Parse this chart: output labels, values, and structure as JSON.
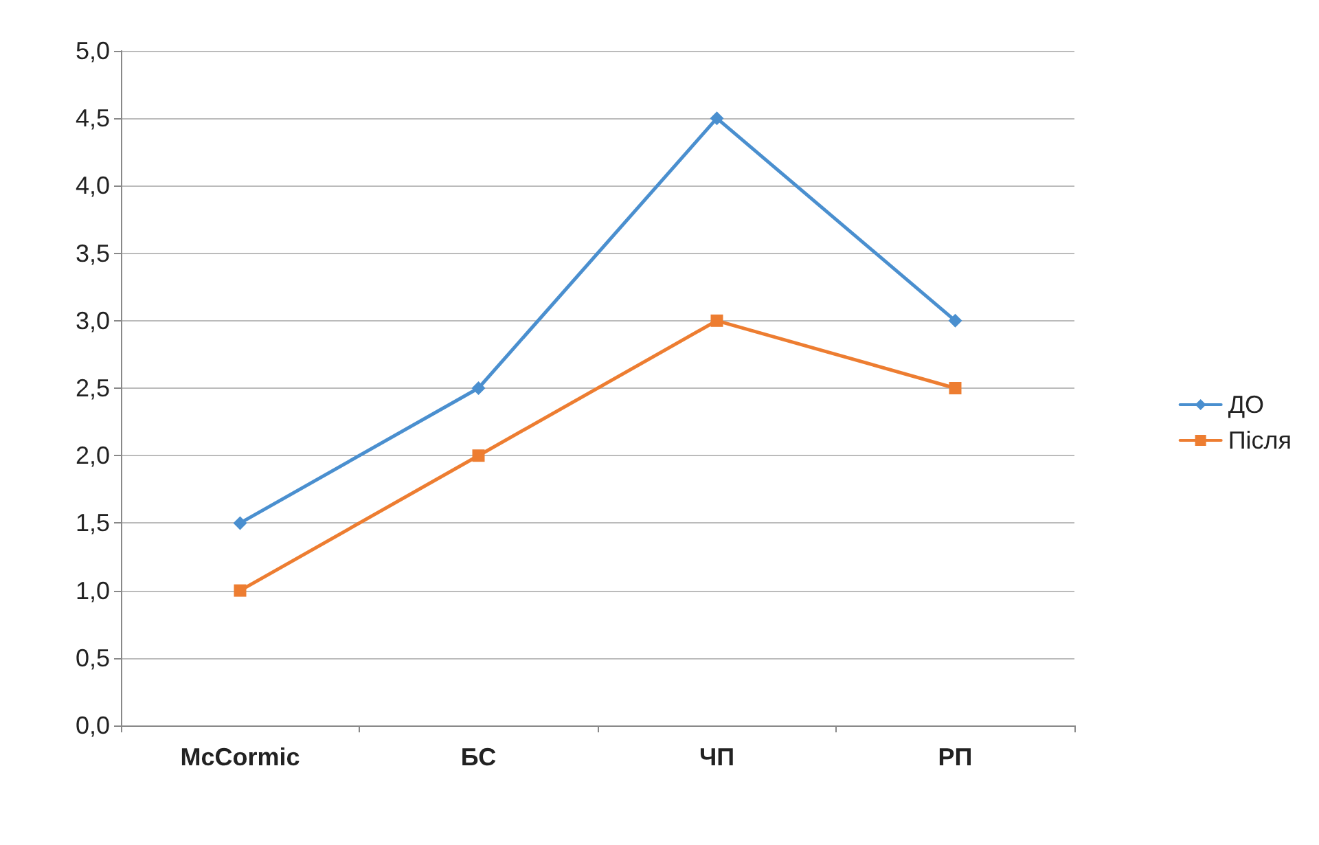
{
  "chart_data": {
    "type": "line",
    "categories": [
      "McCormic",
      "БС",
      "ЧП",
      "РП"
    ],
    "series": [
      {
        "name": "ДО",
        "color": "#4a8fcf",
        "marker": "diamond",
        "values": [
          1.5,
          2.5,
          4.5,
          3.0
        ]
      },
      {
        "name": "Після",
        "color": "#ed7d31",
        "marker": "square",
        "values": [
          1.0,
          2.0,
          3.0,
          2.5
        ]
      }
    ],
    "ylim": [
      0,
      5
    ],
    "yticks": [
      {
        "value": 0,
        "label": "0,0"
      },
      {
        "value": 0.5,
        "label": "0,5"
      },
      {
        "value": 1,
        "label": "1,0"
      },
      {
        "value": 1.5,
        "label": "1,5"
      },
      {
        "value": 2,
        "label": "2,0"
      },
      {
        "value": 2.5,
        "label": "2,5"
      },
      {
        "value": 3,
        "label": "3,0"
      },
      {
        "value": 3.5,
        "label": "3,5"
      },
      {
        "value": 4,
        "label": "4,0"
      },
      {
        "value": 4.5,
        "label": "4,5"
      },
      {
        "value": 5,
        "label": "5,0"
      }
    ],
    "grid": "y",
    "legend": "right",
    "line_style": "solid"
  }
}
